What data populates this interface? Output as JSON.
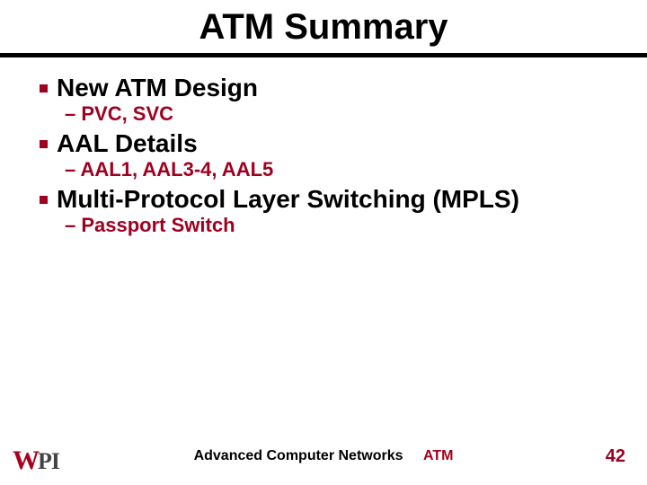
{
  "colors": {
    "accent": "#a00020",
    "text": "#000000",
    "background": "#ffffff"
  },
  "typography": {
    "title_fontsize": 40,
    "item_fontsize": 28,
    "sub_fontsize": 22,
    "footer_fontsize": 16,
    "pagenum_fontsize": 20,
    "font_family": "Comic Sans MS"
  },
  "title": "ATM Summary",
  "items": [
    {
      "label": "New ATM Design",
      "sub": "– PVC, SVC"
    },
    {
      "label": "AAL Details",
      "sub": "– AAL1, AAL3-4, AAL5"
    },
    {
      "label": "Multi-Protocol Layer Switching (MPLS)",
      "sub": "– Passport Switch"
    }
  ],
  "footer": {
    "logo_w": "W",
    "logo_pi": "PI",
    "course": "Advanced Computer Networks",
    "topic": "ATM",
    "page": "42"
  }
}
